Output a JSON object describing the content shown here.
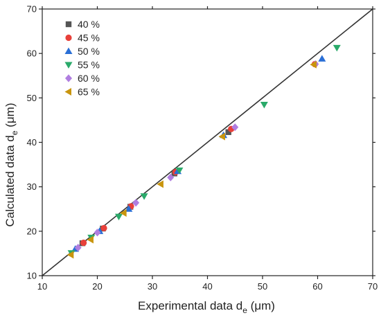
{
  "chart_data": {
    "type": "scatter",
    "title": "",
    "xlabel": "Experimental data d",
    "xlabel_sub": "e",
    "xlabel_unit": " (μm)",
    "ylabel": "Calculated data d",
    "ylabel_sub": "e",
    "ylabel_unit": " (μm)",
    "xlim": [
      10,
      70
    ],
    "ylim": [
      10,
      70
    ],
    "xticks": [
      10,
      20,
      30,
      40,
      50,
      60,
      70
    ],
    "yticks": [
      10,
      20,
      30,
      40,
      50,
      60,
      70
    ],
    "grid": false,
    "legend_position": "top-left",
    "reference_line": {
      "from": [
        10,
        10
      ],
      "to": [
        70,
        70
      ],
      "color": "#333333"
    },
    "series": [
      {
        "name": "40 %",
        "marker": "square",
        "color": "#555555",
        "points": [
          [
            17.3,
            17.3
          ],
          [
            21.0,
            20.6
          ],
          [
            26.0,
            25.5
          ],
          [
            34.0,
            33.0
          ],
          [
            43.8,
            42.3
          ]
        ]
      },
      {
        "name": "45 %",
        "marker": "circle",
        "color": "#e8403a",
        "points": [
          [
            17.5,
            17.4
          ],
          [
            21.2,
            20.7
          ],
          [
            26.1,
            25.6
          ],
          [
            34.2,
            33.3
          ],
          [
            44.3,
            43.0
          ],
          [
            59.5,
            57.6
          ]
        ]
      },
      {
        "name": "50 %",
        "marker": "triangle-up",
        "color": "#2a6fd6",
        "points": [
          [
            16.0,
            16.0
          ],
          [
            20.4,
            20.0
          ],
          [
            25.7,
            25.0
          ],
          [
            34.6,
            33.5
          ],
          [
            42.9,
            41.6
          ],
          [
            60.8,
            58.8
          ]
        ]
      },
      {
        "name": "55 %",
        "marker": "triangle-down",
        "color": "#2aaa6a",
        "points": [
          [
            15.3,
            15.1
          ],
          [
            18.9,
            18.6
          ],
          [
            23.9,
            23.3
          ],
          [
            28.5,
            27.9
          ],
          [
            34.9,
            33.7
          ],
          [
            50.3,
            48.5
          ],
          [
            63.5,
            61.3
          ]
        ]
      },
      {
        "name": "60 %",
        "marker": "diamond",
        "color": "#b07ee0",
        "points": [
          [
            16.5,
            16.3
          ],
          [
            20.0,
            19.7
          ],
          [
            27.0,
            26.4
          ],
          [
            33.3,
            32.1
          ],
          [
            45.0,
            43.4
          ],
          [
            59.6,
            57.6
          ]
        ]
      },
      {
        "name": "65 %",
        "marker": "triangle-left",
        "color": "#c9950e",
        "points": [
          [
            15.2,
            14.7
          ],
          [
            18.8,
            18.1
          ],
          [
            24.8,
            24.1
          ],
          [
            31.5,
            30.6
          ],
          [
            42.7,
            41.3
          ],
          [
            59.3,
            57.5
          ]
        ]
      }
    ]
  }
}
